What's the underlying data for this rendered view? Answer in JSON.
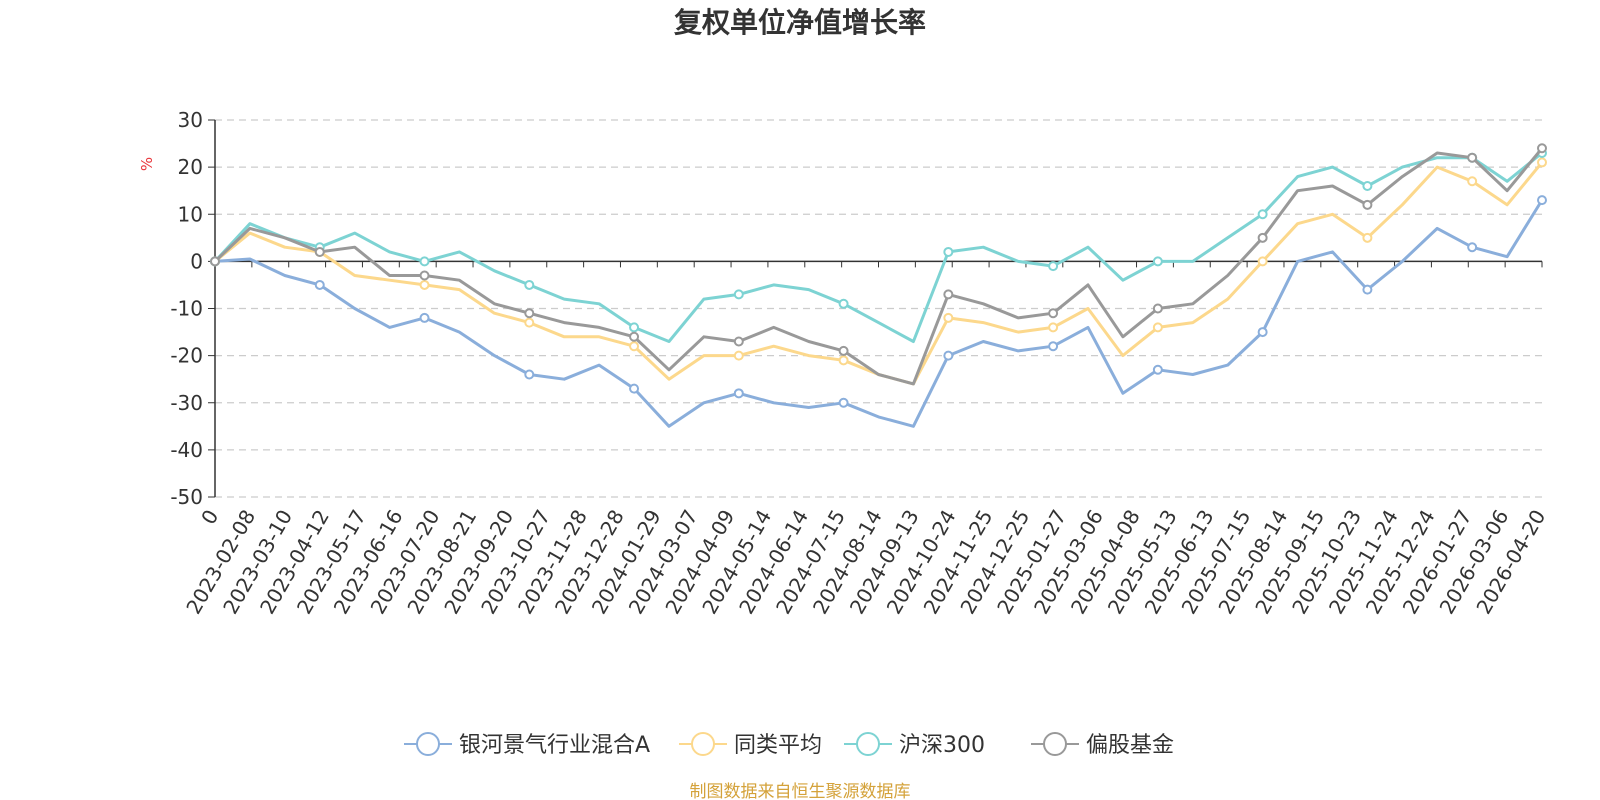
{
  "chart_data": {
    "type": "line",
    "title": "复权单位净值增长率",
    "ylabel": "%",
    "ylim": [
      -50,
      30
    ],
    "yticks": [
      30,
      20,
      10,
      0,
      -10,
      -20,
      -30,
      -40,
      -50
    ],
    "x_tick_labels": [
      "0",
      "2023-02-08",
      "2023-03-10",
      "2023-04-12",
      "2023-05-17",
      "2023-06-16",
      "2023-07-20",
      "2023-08-21",
      "2023-09-20",
      "2023-10-27",
      "2023-11-28",
      "2023-12-28",
      "2024-01-29",
      "2024-03-07",
      "2024-04-09",
      "2024-05-14",
      "2024-06-14",
      "2024-07-15",
      "2024-08-14",
      "2024-09-13",
      "2024-10-24",
      "2024-11-25",
      "2024-12-25",
      "2025-01-27",
      "2025-03-06",
      "2025-04-08",
      "2025-05-13",
      "2025-06-13",
      "2025-07-15",
      "2025-08-14",
      "2025-09-15",
      "2025-10-23",
      "2025-11-24",
      "2025-12-24",
      "2026-01-27",
      "2026-03-06",
      "2026-04-20"
    ],
    "grid": true,
    "legend_position": "bottom-center",
    "series": [
      {
        "name": "银河景气行业混合A",
        "color": "#8aaedb",
        "values": [
          0,
          0.5,
          -3,
          -5,
          -10,
          -14,
          -12,
          -15,
          -20,
          -24,
          -25,
          -22,
          -27,
          -35,
          -30,
          -28,
          -30,
          -31,
          -30,
          -33,
          -35,
          -20,
          -17,
          -19,
          -18,
          -14,
          -28,
          -23,
          -24,
          -22,
          -15,
          0,
          2,
          -6,
          0,
          7,
          3,
          1,
          13
        ]
      },
      {
        "name": "同类平均",
        "color": "#fcd88c",
        "values": [
          0,
          6,
          3,
          2,
          -3,
          -4,
          -5,
          -6,
          -11,
          -13,
          -16,
          -16,
          -18,
          -25,
          -20,
          -20,
          -18,
          -20,
          -21,
          -24,
          -26,
          -12,
          -13,
          -15,
          -14,
          -10,
          -20,
          -14,
          -13,
          -8,
          0,
          8,
          10,
          5,
          12,
          20,
          17,
          12,
          21
        ]
      },
      {
        "name": "沪深300",
        "color": "#7dd3d3",
        "values": [
          0,
          8,
          5,
          3,
          6,
          2,
          0,
          2,
          -2,
          -5,
          -8,
          -9,
          -14,
          -17,
          -8,
          -7,
          -5,
          -6,
          -9,
          -13,
          -17,
          2,
          3,
          0,
          -1,
          3,
          -4,
          0,
          0,
          5,
          10,
          18,
          20,
          16,
          20,
          22,
          22,
          17,
          23
        ]
      },
      {
        "name": "偏股基金",
        "color": "#999999",
        "values": [
          0,
          7,
          5,
          2,
          3,
          -3,
          -3,
          -4,
          -9,
          -11,
          -13,
          -14,
          -16,
          -23,
          -16,
          -17,
          -14,
          -17,
          -19,
          -24,
          -26,
          -7,
          -9,
          -12,
          -11,
          -5,
          -16,
          -10,
          -9,
          -3,
          5,
          15,
          16,
          12,
          18,
          23,
          22,
          15,
          24
        ]
      }
    ],
    "source_note": "制图数据来自恒生聚源数据库"
  }
}
